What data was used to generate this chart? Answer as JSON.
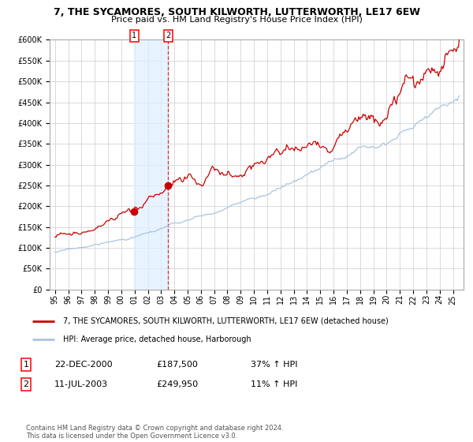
{
  "title": "7, THE SYCAMORES, SOUTH KILWORTH, LUTTERWORTH, LE17 6EW",
  "subtitle": "Price paid vs. HM Land Registry's House Price Index (HPI)",
  "legend_line1": "7, THE SYCAMORES, SOUTH KILWORTH, LUTTERWORTH, LE17 6EW (detached house)",
  "legend_line2": "HPI: Average price, detached house, Harborough",
  "transaction1_label": "1",
  "transaction1_date": "22-DEC-2000",
  "transaction1_price": "£187,500",
  "transaction1_hpi": "37% ↑ HPI",
  "transaction2_label": "2",
  "transaction2_date": "11-JUL-2003",
  "transaction2_price": "£249,950",
  "transaction2_hpi": "11% ↑ HPI",
  "footer": "Contains HM Land Registry data © Crown copyright and database right 2024.\nThis data is licensed under the Open Government Licence v3.0.",
  "ylim": [
    0,
    600000
  ],
  "yticks": [
    0,
    50000,
    100000,
    150000,
    200000,
    250000,
    300000,
    350000,
    400000,
    450000,
    500000,
    550000,
    600000
  ],
  "xlim_left": 1994.6,
  "xlim_right": 2025.8,
  "background_color": "#ffffff",
  "grid_color": "#cccccc",
  "hpi_color": "#aac4e0",
  "price_color": "#cc0000",
  "shade_color": "#ddeeff",
  "shade_alpha": 0.7,
  "marker1_x": 2000.97,
  "marker1_y": 187500,
  "marker2_x": 2003.53,
  "marker2_y": 249950,
  "vline_x": 2003.53,
  "shade_x1": 2000.97,
  "shade_x2": 2003.53,
  "title_fontsize": 9,
  "subtitle_fontsize": 8,
  "tick_fontsize": 7,
  "legend_fontsize": 7,
  "table_fontsize": 8,
  "footer_fontsize": 6
}
